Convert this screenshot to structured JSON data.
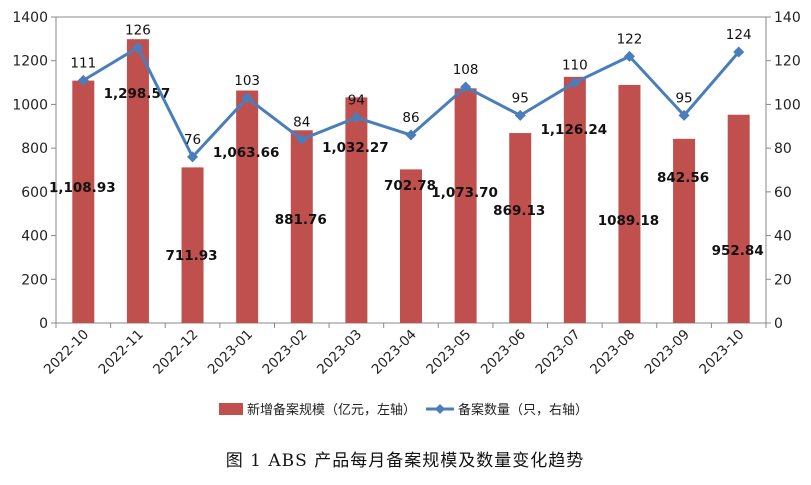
{
  "chart_data": {
    "type": "bar",
    "categories": [
      "2022-10",
      "2022-11",
      "2022-12",
      "2023-01",
      "2023-02",
      "2023-03",
      "2023-04",
      "2023-05",
      "2023-06",
      "2023-07",
      "2023-08",
      "2023-09",
      "2023-10"
    ],
    "series": [
      {
        "name": "新增备案规模（亿元，左轴）",
        "type": "bar",
        "axis": "left",
        "color": "#c0504d",
        "values": [
          1108.93,
          1298.57,
          711.93,
          1063.66,
          881.76,
          1032.27,
          702.78,
          1073.7,
          869.13,
          1126.24,
          1089.18,
          842.56,
          952.84
        ],
        "labels": [
          "1,108.93",
          "1,298.57",
          "711.93",
          "1,063.66",
          "881.76",
          "1,032.27",
          "702.78",
          "1,073.70",
          "869.13",
          "1,126.24",
          "1089.18",
          "842.56",
          "952.84"
        ]
      },
      {
        "name": "备案数量（只，右轴）",
        "type": "line",
        "axis": "right",
        "color": "#4a7ebb",
        "marker": "diamond",
        "values": [
          111,
          126,
          76,
          103,
          84,
          94,
          86,
          108,
          95,
          110,
          122,
          95,
          124
        ],
        "labels": [
          "111",
          "126",
          "76",
          "103",
          "84",
          "94",
          "86",
          "108",
          "95",
          "110",
          "122",
          "95",
          "124"
        ]
      }
    ],
    "y_left": {
      "lim": [
        0,
        1400
      ],
      "ticks": [
        "0",
        "200",
        "400",
        "600",
        "800",
        "1000",
        "1200",
        "1400"
      ]
    },
    "y_right": {
      "lim": [
        0,
        140
      ],
      "ticks": [
        "0",
        "20",
        "40",
        "60",
        "80",
        "100",
        "120",
        "140"
      ]
    },
    "title": "",
    "xlabel": "",
    "ylabel": "",
    "grid": false,
    "legend_position": "bottom",
    "caption": "图 1   ABS 产品每月备案规模及数量变化趋势"
  }
}
